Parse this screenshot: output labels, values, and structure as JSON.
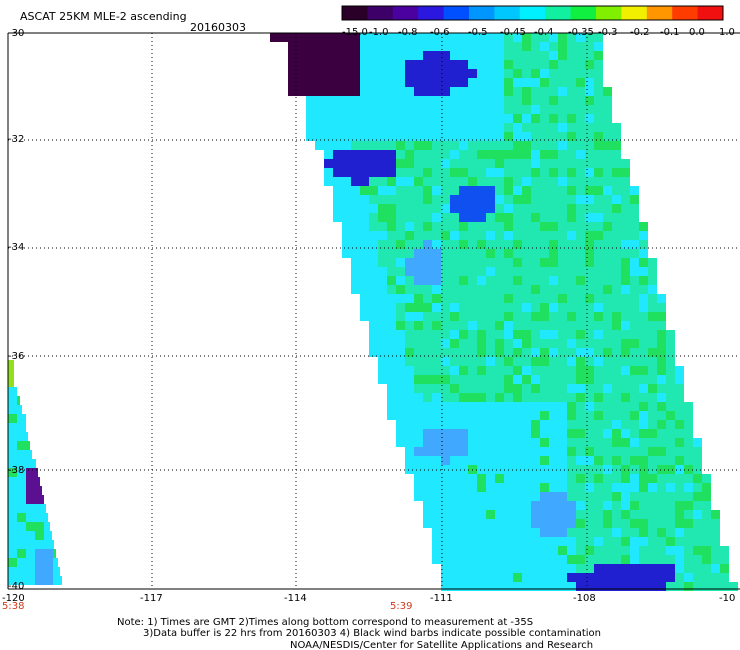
{
  "header": {
    "title": "ASCAT 25KM MLE-2 ascending",
    "date": "20160303"
  },
  "colorbar": {
    "tick_labels": [
      "-15.0",
      "-1.0",
      "-0.8",
      "-0.6",
      "-0.5",
      "-0.45",
      "-0.4",
      "-0.35",
      "-0.3",
      "-0.2",
      "-0.1",
      "0.0",
      "1.0"
    ],
    "colors": [
      "#2a0028",
      "#3c0068",
      "#4b00a0",
      "#2a18e0",
      "#0050ff",
      "#0096ff",
      "#00c8ff",
      "#00f0ff",
      "#10f0a0",
      "#10f040",
      "#80f000",
      "#f0f000",
      "#ff9600",
      "#ff3c00",
      "#f01010"
    ]
  },
  "map": {
    "lat_labels": [
      "-30",
      "-32",
      "-34",
      "-36",
      "-38",
      "-40"
    ],
    "lon_labels": [
      "-120",
      "-117",
      "-114",
      "-111",
      "-108",
      "-10"
    ],
    "time_labels": [
      "5:38",
      "5:39"
    ],
    "palette": {
      "deep_purple": "#3a0040",
      "purple": "#5a1090",
      "dark_blue": "#2020d0",
      "blue": "#1050f0",
      "light_blue": "#40a8ff",
      "cyan": "#20e8ff",
      "teal": "#20e8b0",
      "green": "#20e060",
      "bright_green": "#30f020",
      "yellow_green": "#90e020"
    }
  },
  "footer": {
    "line1": "Note: 1) Times are GMT 2)Times along bottom correspond to measurement at -35S",
    "line2": "3)Data buffer is 22 hrs from 20160303 4) Black wind barbs indicate possible contamination",
    "line3": "NOAA/NESDIS/Center for Satellite Applications and Research"
  }
}
